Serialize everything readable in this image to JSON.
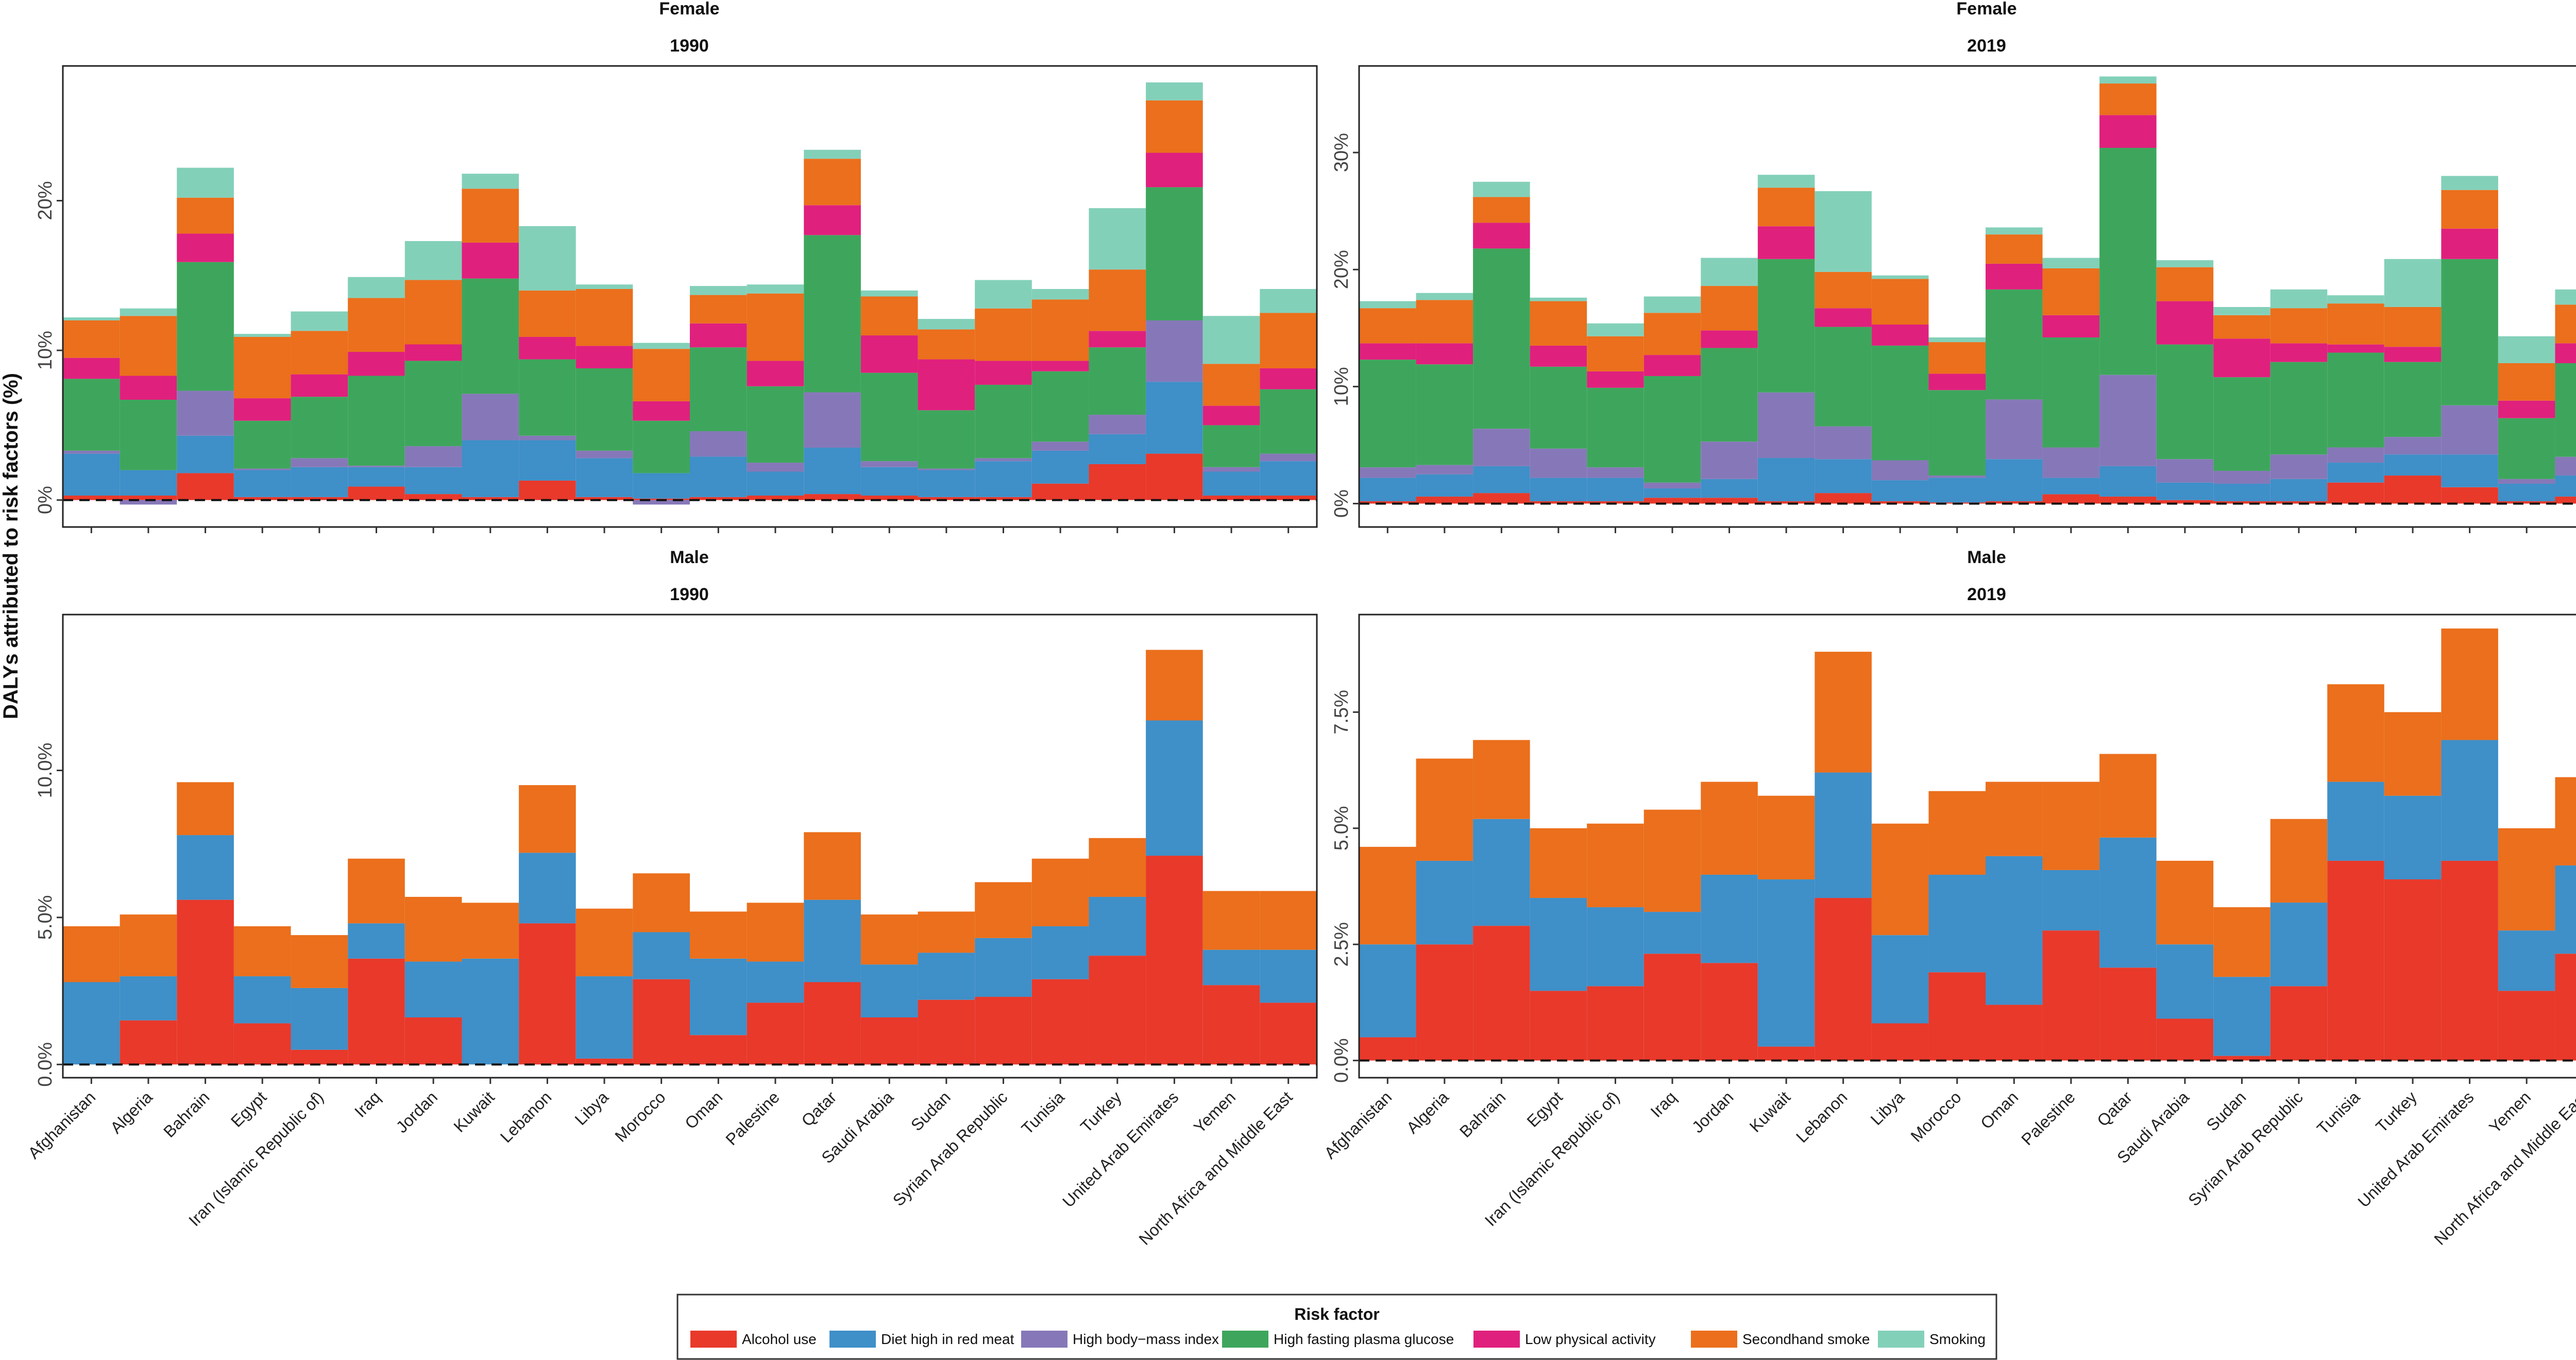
{
  "chart_data": {
    "type": "stacked-bar",
    "ylabel": "DALYs attributed to risk factors (%)",
    "legend": {
      "title": "Risk factor",
      "position": "bottom",
      "items": [
        {
          "name": "Alcohol use",
          "color": "#E8392B"
        },
        {
          "name": "Diet high in red meat",
          "color": "#3F8FC8"
        },
        {
          "name": "High body−mass index",
          "color": "#8678B8"
        },
        {
          "name": "High fasting plasma glucose",
          "color": "#3EA65C"
        },
        {
          "name": "Low physical activity",
          "color": "#E0207D"
        },
        {
          "name": "Secondhand smoke",
          "color": "#EB6F1C"
        },
        {
          "name": "Smoking",
          "color": "#83D0B9"
        }
      ]
    },
    "categories": [
      "Afghanistan",
      "Algeria",
      "Bahrain",
      "Egypt",
      "Iran (Islamic Republic of)",
      "Iraq",
      "Jordan",
      "Kuwait",
      "Lebanon",
      "Libya",
      "Morocco",
      "Oman",
      "Palestine",
      "Qatar",
      "Saudi Arabia",
      "Sudan",
      "Syrian Arab Republic",
      "Tunisia",
      "Turkey",
      "United Arab Emirates",
      "Yemen",
      "North Africa and Middle East"
    ],
    "panels": [
      {
        "sex": "Female",
        "year": "1990",
        "ylim": [
          -1.8,
          29
        ],
        "ticks": [
          0,
          10,
          20
        ],
        "tick_labels": [
          "0%",
          "10%",
          "20%"
        ],
        "series": [
          {
            "name": "Alcohol use",
            "values": [
              0.3,
              0.3,
              1.8,
              0.2,
              0.2,
              0.9,
              0.4,
              0.2,
              1.3,
              0.2,
              0.1,
              0.2,
              0.3,
              0.4,
              0.3,
              0.2,
              0.2,
              1.1,
              2.4,
              3.1,
              0.3,
              0.3
            ]
          },
          {
            "name": "Diet high in red meat",
            "values": [
              2.8,
              1.7,
              2.5,
              1.8,
              2.0,
              1.3,
              1.8,
              3.8,
              2.7,
              2.6,
              1.7,
              2.7,
              1.6,
              3.1,
              1.9,
              1.8,
              2.4,
              2.2,
              2.0,
              4.8,
              1.6,
              2.3
            ]
          },
          {
            "name": "High body−mass index",
            "values": [
              0.2,
              -0.3,
              3.0,
              0.1,
              0.6,
              0.1,
              1.4,
              3.1,
              0.3,
              0.5,
              -0.3,
              1.7,
              0.6,
              3.7,
              0.4,
              0.1,
              0.2,
              0.6,
              1.3,
              4.1,
              0.3,
              0.5
            ]
          },
          {
            "name": "High fasting plasma glucose",
            "values": [
              4.8,
              4.7,
              8.6,
              3.2,
              4.1,
              6.0,
              5.7,
              7.7,
              5.1,
              5.5,
              3.5,
              5.6,
              5.1,
              10.5,
              5.9,
              3.9,
              4.9,
              4.7,
              4.5,
              8.9,
              2.8,
              4.3
            ]
          },
          {
            "name": "Low physical activity",
            "values": [
              1.4,
              1.6,
              1.9,
              1.5,
              1.5,
              1.6,
              1.1,
              2.4,
              1.5,
              1.5,
              1.3,
              1.6,
              1.7,
              2.0,
              2.5,
              3.4,
              1.6,
              0.7,
              1.1,
              2.3,
              1.3,
              1.4
            ]
          },
          {
            "name": "Secondhand smoke",
            "values": [
              2.5,
              4.0,
              2.4,
              4.1,
              2.9,
              3.6,
              4.3,
              3.6,
              3.1,
              3.8,
              3.5,
              1.9,
              4.5,
              3.1,
              2.6,
              2.0,
              3.5,
              4.1,
              4.1,
              3.5,
              2.8,
              3.7
            ]
          },
          {
            "name": "Smoking",
            "values": [
              0.2,
              0.5,
              2.0,
              0.2,
              1.3,
              1.4,
              2.6,
              1.0,
              4.3,
              0.3,
              0.4,
              0.6,
              0.6,
              0.6,
              0.4,
              0.7,
              1.9,
              0.7,
              4.1,
              1.2,
              3.2,
              1.6
            ]
          }
        ]
      },
      {
        "sex": "Female",
        "year": "2019",
        "ylim": [
          -2,
          37.4
        ],
        "ticks": [
          0,
          10,
          20,
          30
        ],
        "tick_labels": [
          "0%",
          "10%",
          "20%",
          "30%"
        ],
        "series": [
          {
            "name": "Alcohol use",
            "values": [
              0.2,
              0.6,
              0.9,
              0.2,
              0.2,
              0.5,
              0.5,
              0.2,
              0.9,
              0.2,
              0.1,
              0.2,
              0.8,
              0.6,
              0.3,
              0.2,
              0.2,
              1.8,
              2.4,
              1.4,
              0.2,
              0.6
            ]
          },
          {
            "name": "Diet high in red meat",
            "values": [
              2.0,
              1.9,
              2.3,
              2.0,
              2.0,
              0.8,
              1.6,
              3.7,
              2.9,
              1.8,
              2.1,
              3.6,
              1.4,
              2.6,
              1.5,
              1.5,
              1.9,
              1.7,
              1.8,
              2.8,
              1.5,
              1.8
            ]
          },
          {
            "name": "High body−mass index",
            "values": [
              0.9,
              0.8,
              3.2,
              2.5,
              0.9,
              0.5,
              3.2,
              5.6,
              2.8,
              1.7,
              0.2,
              5.1,
              2.6,
              7.8,
              2.0,
              1.1,
              2.1,
              1.3,
              1.5,
              4.2,
              0.4,
              1.6
            ]
          },
          {
            "name": "High fasting plasma glucose",
            "values": [
              9.2,
              8.6,
              15.4,
              7.0,
              6.8,
              9.1,
              8.0,
              11.4,
              8.5,
              9.8,
              7.3,
              9.4,
              9.4,
              19.4,
              9.8,
              8.0,
              7.9,
              8.1,
              6.4,
              12.5,
              5.2,
              8.0
            ]
          },
          {
            "name": "Low physical activity",
            "values": [
              1.4,
              1.8,
              2.2,
              1.8,
              1.4,
              1.8,
              1.5,
              2.8,
              1.6,
              1.8,
              1.4,
              2.2,
              1.9,
              2.8,
              3.7,
              3.3,
              1.6,
              0.7,
              1.3,
              2.6,
              1.5,
              1.7
            ]
          },
          {
            "name": "Secondhand smoke",
            "values": [
              3.0,
              3.7,
              2.2,
              3.8,
              3.0,
              3.6,
              3.8,
              3.3,
              3.1,
              3.9,
              2.7,
              2.5,
              4.0,
              2.7,
              2.9,
              2.0,
              3.0,
              3.5,
              3.4,
              3.3,
              3.2,
              3.3
            ]
          },
          {
            "name": "Smoking",
            "values": [
              0.6,
              0.6,
              1.3,
              0.3,
              1.1,
              1.4,
              2.4,
              1.1,
              6.9,
              0.3,
              0.4,
              0.6,
              0.9,
              0.6,
              0.6,
              0.7,
              1.6,
              0.7,
              4.1,
              1.2,
              2.3,
              1.3
            ]
          }
        ]
      },
      {
        "sex": "Male",
        "year": "1990",
        "ylim": [
          -0.45,
          15.3
        ],
        "ticks": [
          0,
          5,
          10
        ],
        "tick_labels": [
          "0.0%",
          "5.0%",
          "10.0%"
        ],
        "series": [
          {
            "name": "Alcohol use",
            "values": [
              0.0,
              1.5,
              5.6,
              1.4,
              0.5,
              3.6,
              1.6,
              0.0,
              4.8,
              0.2,
              2.9,
              1.0,
              2.1,
              2.8,
              1.6,
              2.2,
              2.3,
              2.9,
              3.7,
              7.1,
              2.7,
              2.1
            ]
          },
          {
            "name": "Diet high in red meat",
            "values": [
              2.8,
              1.5,
              2.2,
              1.6,
              2.1,
              1.2,
              1.9,
              3.6,
              2.4,
              2.8,
              1.6,
              2.6,
              1.4,
              2.8,
              1.8,
              1.6,
              2.0,
              1.8,
              2.0,
              4.6,
              1.2,
              1.8
            ]
          },
          {
            "name": "Secondhand smoke",
            "values": [
              1.9,
              2.1,
              1.8,
              1.7,
              1.8,
              2.2,
              2.2,
              1.9,
              2.3,
              2.3,
              2.0,
              1.6,
              2.0,
              2.3,
              1.7,
              1.4,
              1.9,
              2.3,
              2.0,
              2.4,
              2.0,
              2.0
            ]
          }
        ]
      },
      {
        "sex": "Male",
        "year": "2019",
        "ylim": [
          -0.37,
          9.6
        ],
        "ticks": [
          0,
          2.5,
          5,
          7.5
        ],
        "tick_labels": [
          "0.0%",
          "2.5%",
          "5.0%",
          "7.5%"
        ],
        "series": [
          {
            "name": "Alcohol use",
            "values": [
              0.5,
              2.5,
              2.9,
              1.5,
              1.6,
              2.3,
              2.1,
              0.3,
              3.5,
              0.8,
              1.9,
              1.2,
              2.8,
              2.0,
              0.9,
              0.1,
              1.6,
              4.3,
              3.9,
              4.3,
              1.5,
              2.3
            ]
          },
          {
            "name": "Diet high in red meat",
            "values": [
              2.0,
              1.8,
              2.3,
              2.0,
              1.7,
              0.9,
              1.9,
              3.6,
              2.7,
              1.9,
              2.1,
              3.2,
              1.3,
              2.8,
              1.6,
              1.7,
              1.8,
              1.7,
              1.8,
              2.6,
              1.3,
              1.9
            ]
          },
          {
            "name": "Secondhand smoke",
            "values": [
              2.1,
              2.2,
              1.7,
              1.5,
              1.8,
              2.2,
              2.0,
              1.8,
              2.6,
              2.4,
              1.8,
              1.6,
              1.9,
              1.8,
              1.8,
              1.5,
              1.8,
              2.1,
              1.8,
              2.4,
              2.2,
              1.9
            ]
          }
        ]
      }
    ]
  }
}
